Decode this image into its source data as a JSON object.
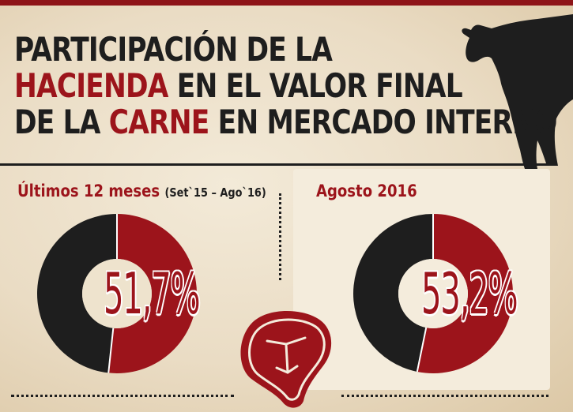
{
  "title": {
    "line1": "PARTICIPACIÓN DE LA",
    "line2_red": "HACIENDA",
    "line2_rest": " EN EL VALOR FINAL",
    "line3_start": "DE LA ",
    "line3_red": "CARNE",
    "line3_rest": " EN MERCADO INTERNO"
  },
  "colors": {
    "accent_red": "#9c141b",
    "dark": "#1e1e1e",
    "background": "#eadcc4"
  },
  "icons": [
    "cow-silhouette-icon",
    "steak-icon"
  ],
  "chart_data": [
    {
      "type": "pie",
      "title": "Últimos 12 meses",
      "subtitle": "(Set`15 – Ago`16)",
      "label": "51,7%",
      "values": [
        51.7,
        48.3
      ],
      "colors": [
        "#9c141b",
        "#1e1e1e"
      ]
    },
    {
      "type": "pie",
      "title": "Agosto 2016",
      "label": "53,2%",
      "values": [
        53.2,
        46.8
      ],
      "colors": [
        "#9c141b",
        "#1e1e1e"
      ]
    }
  ]
}
